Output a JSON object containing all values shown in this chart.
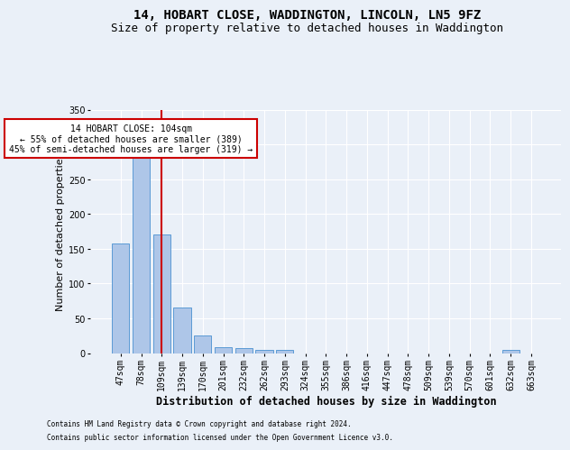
{
  "title": "14, HOBART CLOSE, WADDINGTON, LINCOLN, LN5 9FZ",
  "subtitle": "Size of property relative to detached houses in Waddington",
  "xlabel": "Distribution of detached houses by size in Waddington",
  "ylabel": "Number of detached properties",
  "categories": [
    "47sqm",
    "78sqm",
    "109sqm",
    "139sqm",
    "170sqm",
    "201sqm",
    "232sqm",
    "262sqm",
    "293sqm",
    "324sqm",
    "355sqm",
    "386sqm",
    "416sqm",
    "447sqm",
    "478sqm",
    "509sqm",
    "539sqm",
    "570sqm",
    "601sqm",
    "632sqm",
    "663sqm"
  ],
  "values": [
    157,
    286,
    170,
    65,
    25,
    9,
    7,
    5,
    4,
    0,
    0,
    0,
    0,
    0,
    0,
    0,
    0,
    0,
    0,
    4,
    0
  ],
  "bar_color": "#aec6e8",
  "bar_edge_color": "#5b9bd5",
  "background_color": "#eaf0f8",
  "grid_color": "#ffffff",
  "red_line_index": 2,
  "red_line_color": "#cc0000",
  "annotation_text": "14 HOBART CLOSE: 104sqm\n← 55% of detached houses are smaller (389)\n45% of semi-detached houses are larger (319) →",
  "annotation_box_color": "#ffffff",
  "annotation_box_edge": "#cc0000",
  "ylim": [
    0,
    350
  ],
  "yticks": [
    0,
    50,
    100,
    150,
    200,
    250,
    300,
    350
  ],
  "footnote1": "Contains HM Land Registry data © Crown copyright and database right 2024.",
  "footnote2": "Contains public sector information licensed under the Open Government Licence v3.0.",
  "title_fontsize": 10,
  "subtitle_fontsize": 9,
  "xlabel_fontsize": 8.5,
  "ylabel_fontsize": 8,
  "tick_fontsize": 7,
  "annotation_fontsize": 7,
  "footnote_fontsize": 5.5
}
